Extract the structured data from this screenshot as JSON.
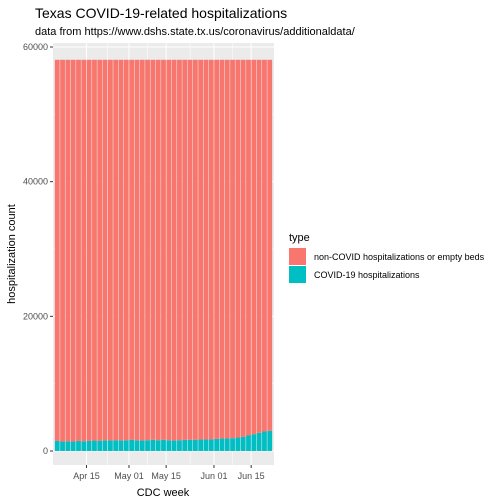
{
  "title": "Texas COVID-19-related hospitalizations",
  "subtitle": "data from https://www.dshs.state.tx.us/coronavirus/additionaldata/",
  "colors": {
    "covid": "#00BFC4",
    "non_covid": "#F8766D",
    "panel": "#EBEBEB",
    "grid": "#FFFFFF"
  },
  "chart_data": {
    "type": "bar",
    "stacked": true,
    "xlabel": "CDC week",
    "ylabel": "hospitalization count",
    "ylim": [
      0,
      60000
    ],
    "y_ticks": [
      0,
      20000,
      40000,
      60000
    ],
    "x_tick_labels": [
      "Apr 15",
      "May 01",
      "May 15",
      "Jun 01",
      "Jun 15"
    ],
    "x_tick_positions": [
      5.5,
      13.5,
      20.5,
      29.5,
      36.5
    ],
    "x_range": [
      -0.8,
      40.8
    ],
    "legend": {
      "title": "type",
      "position": "right"
    },
    "series": [
      {
        "name": "non-COVID hospitalizations or empty beds",
        "values": [
          56600,
          56700,
          56650,
          56700,
          56600,
          56650,
          56600,
          56550,
          56600,
          56500,
          56550,
          56500,
          56550,
          56500,
          56450,
          56500,
          56550,
          56500,
          56450,
          56500,
          56450,
          56500,
          56550,
          56500,
          56450,
          56450,
          56450,
          56400,
          56400,
          56400,
          56300,
          56250,
          56250,
          56200,
          56100,
          56000,
          55800,
          55600,
          55400,
          55200,
          55100
        ]
      },
      {
        "name": "COVID-19 hospitalizations",
        "values": [
          1500,
          1400,
          1450,
          1400,
          1500,
          1450,
          1500,
          1550,
          1500,
          1600,
          1550,
          1600,
          1550,
          1600,
          1650,
          1600,
          1550,
          1600,
          1650,
          1600,
          1650,
          1600,
          1550,
          1600,
          1650,
          1650,
          1650,
          1700,
          1700,
          1700,
          1800,
          1850,
          1850,
          1900,
          2000,
          2100,
          2300,
          2500,
          2700,
          2900,
          3000
        ]
      }
    ]
  }
}
